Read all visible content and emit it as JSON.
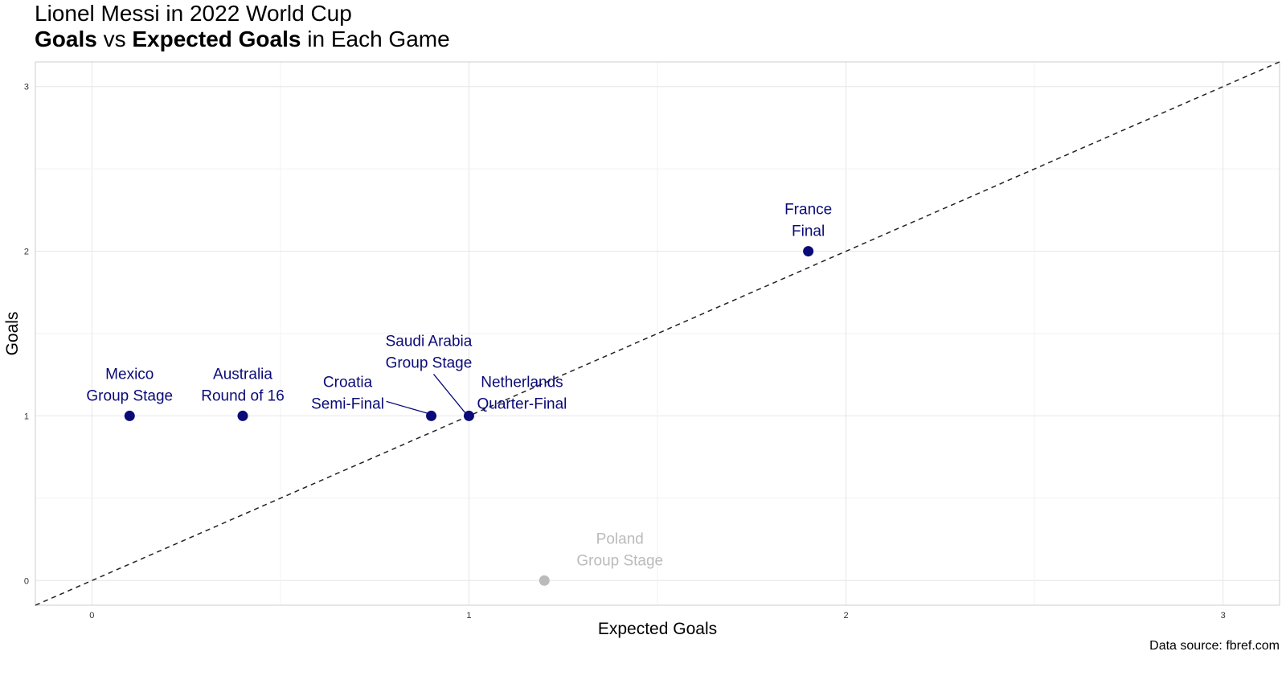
{
  "chart_data": {
    "type": "scatter",
    "title": "Lionel Messi in 2022 World Cup",
    "subtitle_parts": [
      {
        "text": "Goals",
        "bold": true
      },
      {
        "text": " vs ",
        "bold": false
      },
      {
        "text": "Expected Goals",
        "bold": true
      },
      {
        "text": " in Each Game",
        "bold": false
      }
    ],
    "xlabel": "Expected Goals",
    "ylabel": "Goals",
    "xlim": [
      -0.15,
      3.15
    ],
    "ylim": [
      -0.15,
      3.15
    ],
    "x_ticks": [
      0,
      1,
      2,
      3
    ],
    "y_ticks": [
      0,
      1,
      2,
      3
    ],
    "grid": true,
    "reference_line": {
      "type": "y=x",
      "style": "dashed"
    },
    "caption": "Data source: fbref.com",
    "colors": {
      "highlight": "#0a0a78",
      "muted": "#bbbbbb"
    },
    "points": [
      {
        "opponent": "Mexico",
        "stage": "Group Stage",
        "x": 0.1,
        "y": 1,
        "highlight": true
      },
      {
        "opponent": "Australia",
        "stage": "Round of 16",
        "x": 0.4,
        "y": 1,
        "highlight": true
      },
      {
        "opponent": "Croatia",
        "stage": "Semi-Final",
        "x": 0.9,
        "y": 1,
        "highlight": true
      },
      {
        "opponent": "Saudi Arabia",
        "stage": "Group Stage",
        "x": 1.0,
        "y": 1,
        "highlight": true
      },
      {
        "opponent": "Netherlands",
        "stage": "Quarter-Final",
        "x": 1.0,
        "y": 1,
        "highlight": true
      },
      {
        "opponent": "France",
        "stage": "Final",
        "x": 1.9,
        "y": 2,
        "highlight": true
      },
      {
        "opponent": "Poland",
        "stage": "Group Stage",
        "x": 1.2,
        "y": 0,
        "highlight": false
      }
    ]
  }
}
